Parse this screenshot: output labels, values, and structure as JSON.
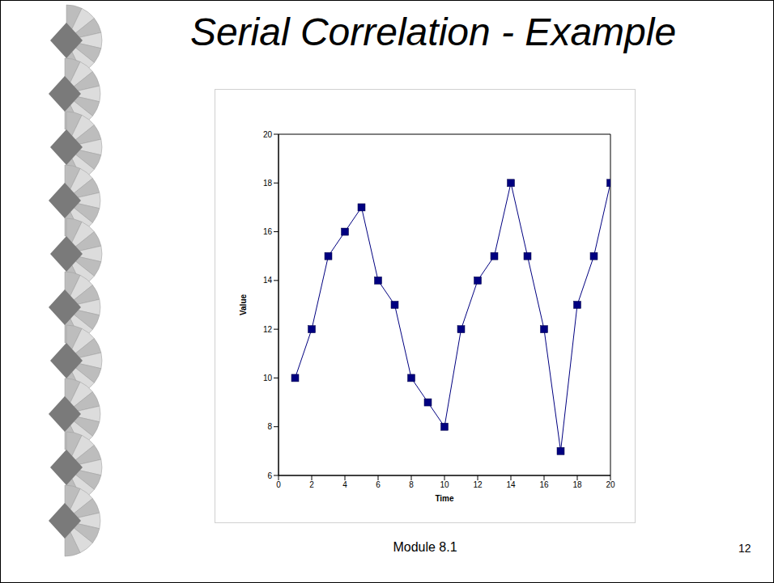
{
  "chart_data": {
    "type": "line",
    "title": "Serial Correlation - Example",
    "xlabel": "Time",
    "ylabel": "Value",
    "x": [
      1,
      2,
      3,
      4,
      5,
      6,
      7,
      8,
      9,
      10,
      11,
      12,
      13,
      14,
      15,
      16,
      17,
      18,
      19,
      20
    ],
    "values": [
      10,
      12,
      15,
      16,
      17,
      14,
      13,
      10,
      9,
      8,
      12,
      14,
      15,
      18,
      15,
      12,
      7,
      13,
      15,
      18
    ],
    "color": "#000080",
    "marker": "square",
    "line_style": "solid",
    "xlim": [
      0,
      20
    ],
    "xticks": [
      0,
      2,
      4,
      6,
      8,
      10,
      12,
      14,
      16,
      18,
      20
    ],
    "ylim": [
      6,
      20
    ],
    "yticks": [
      6,
      8,
      10,
      12,
      14,
      16,
      18,
      20
    ],
    "grid": false
  },
  "slide": {
    "footer": "Module 8.1",
    "page": "12"
  }
}
